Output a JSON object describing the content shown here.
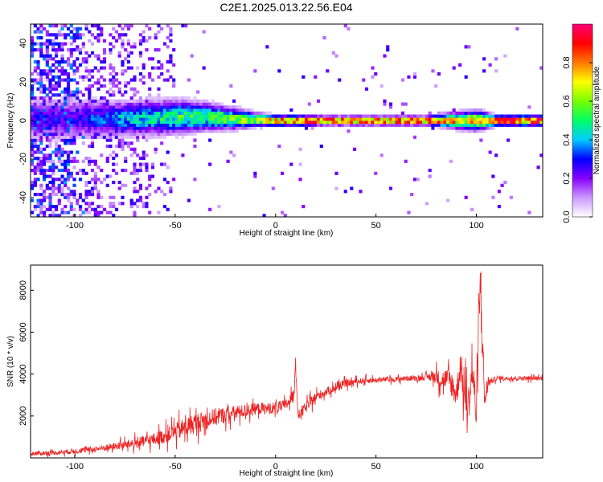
{
  "figure_title": "C2E1.2025.013.22.56.E04",
  "chart_data": [
    {
      "type": "heatmap",
      "title": "C2E1.2025.013.22.56.E04",
      "xlabel": "Height of straight line (km)",
      "ylabel": "Frequency (Hz)",
      "xlim": [
        -122,
        133
      ],
      "ylim": [
        -50,
        50
      ],
      "x_ticks": [
        -100,
        -50,
        0,
        50,
        100
      ],
      "y_ticks": [
        -40,
        -20,
        0,
        20,
        40
      ],
      "grid": false,
      "colorbar": {
        "label": "Normalized spectral amplitude",
        "range": [
          0,
          1
        ],
        "ticks": [
          "0.0",
          "0.2",
          "0.4",
          "0.6",
          "0.8"
        ],
        "colormap": [
          "#ffffff",
          "#cc99ff",
          "#8800ff",
          "#0000ff",
          "#00ccff",
          "#00ff66",
          "#77ff00",
          "#ffff00",
          "#ff7700",
          "#ff0000",
          "#ff0077"
        ]
      },
      "ridge": {
        "description_values": "dominant signal near 0 Hz",
        "x": [
          -100,
          -75,
          -50,
          -35,
          -20,
          -10,
          0,
          10,
          25,
          50,
          75,
          100,
          110,
          133
        ],
        "frequency_hz": [
          1,
          1,
          2,
          2,
          1,
          0.5,
          0,
          0,
          0,
          0,
          0,
          0,
          0,
          0
        ],
        "amplitude": [
          0.25,
          0.4,
          0.5,
          0.55,
          0.6,
          0.7,
          0.85,
          0.9,
          0.95,
          0.95,
          0.95,
          0.7,
          0.9,
          0.95
        ],
        "spread_hz": [
          6,
          5,
          5,
          4,
          3,
          2,
          1.5,
          1.5,
          1.2,
          1.2,
          1.2,
          3,
          1.5,
          1.5
        ]
      }
    },
    {
      "type": "line",
      "xlabel": "Height of straight line (km)",
      "ylabel": "SNR (10 * v/v)",
      "xlim": [
        -122,
        133
      ],
      "ylim": [
        0,
        9200
      ],
      "x_ticks": [
        -100,
        -50,
        0,
        50,
        100
      ],
      "y_ticks": [
        2000,
        4000,
        6000,
        8000
      ],
      "grid": false,
      "line_color": "#ee2222",
      "series": [
        {
          "x": [
            -122,
            -110,
            -100,
            -90,
            -80,
            -70,
            -60,
            -55,
            -50,
            -45,
            -40,
            -35,
            -30,
            -25,
            -20,
            -15,
            -10,
            -5,
            0,
            5,
            9,
            10,
            11,
            15,
            20,
            25,
            30,
            35,
            40,
            45,
            50,
            55,
            60,
            65,
            70,
            75,
            80,
            82,
            85,
            88,
            90,
            92,
            94,
            96,
            98,
            100,
            102,
            104,
            106,
            108,
            110,
            120,
            133
          ],
          "values": [
            200,
            250,
            320,
            420,
            550,
            700,
            900,
            1050,
            1250,
            1450,
            1650,
            1800,
            1950,
            2050,
            2150,
            2250,
            2350,
            2350,
            2400,
            2500,
            3000,
            4800,
            2000,
            2400,
            2900,
            3150,
            3350,
            3550,
            3650,
            3700,
            3700,
            3750,
            3750,
            3800,
            3800,
            3850,
            3900,
            3700,
            3800,
            3500,
            3000,
            4500,
            3000,
            2500,
            4200,
            2000,
            8700,
            2800,
            3600,
            3700,
            3800,
            3800,
            3800
          ],
          "noise_amplitude": [
            150,
            150,
            180,
            200,
            250,
            350,
            450,
            500,
            600,
            700,
            700,
            650,
            600,
            550,
            500,
            450,
            400,
            400,
            400,
            400,
            400,
            400,
            400,
            380,
            350,
            300,
            250,
            250,
            200,
            200,
            180,
            180,
            180,
            180,
            180,
            200,
            500,
            600,
            700,
            900,
            1000,
            1200,
            1300,
            1300,
            1400,
            1500,
            1800,
            1200,
            300,
            200,
            150,
            150,
            150
          ]
        }
      ]
    }
  ]
}
